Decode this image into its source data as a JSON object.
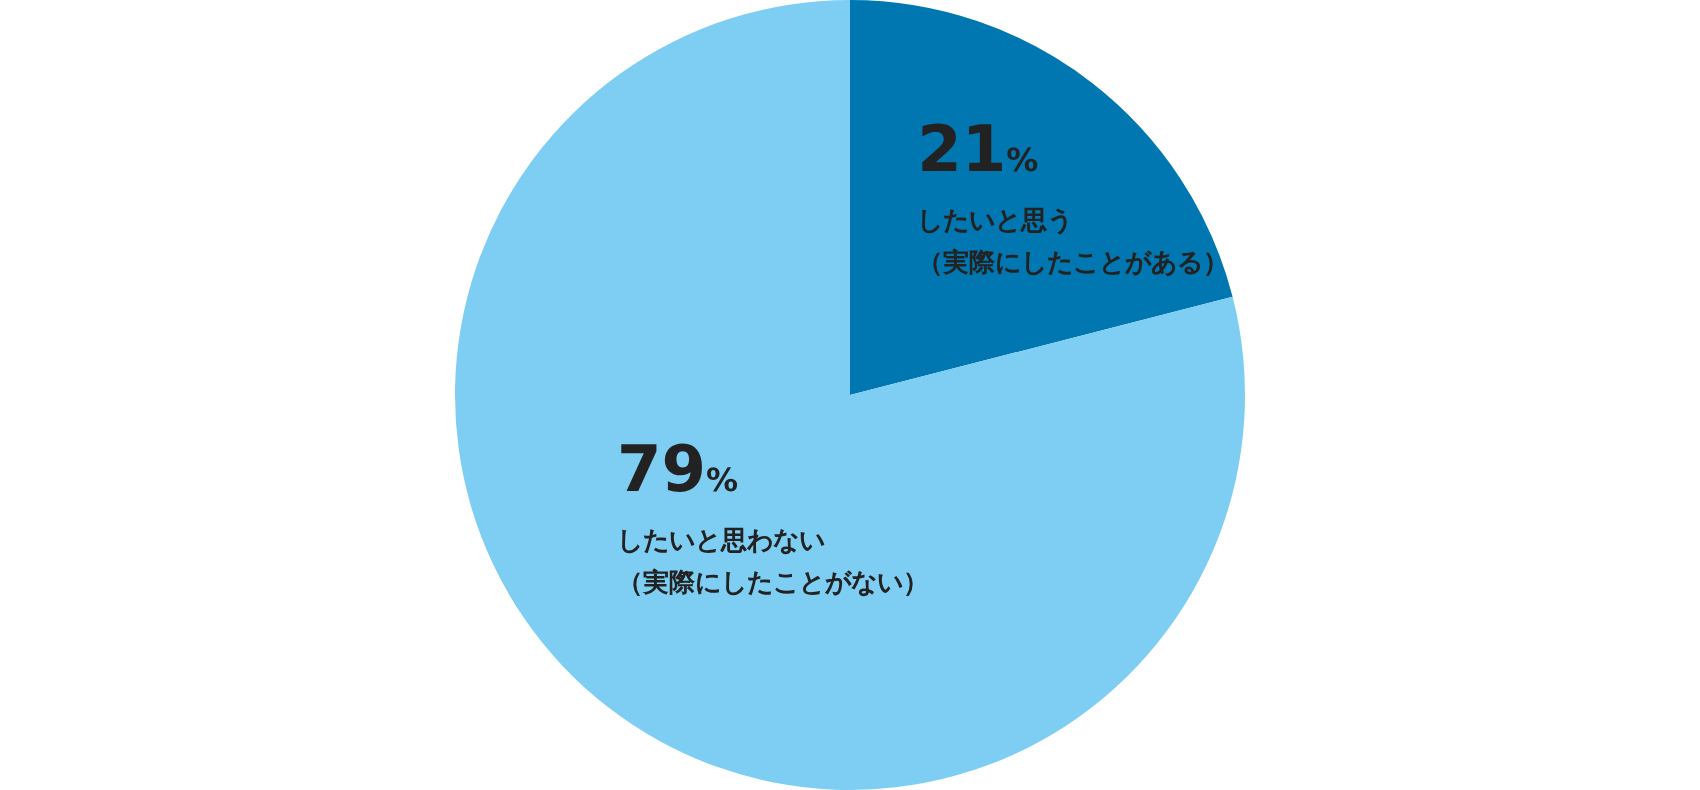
{
  "chart_data": {
    "type": "pie",
    "categories": [
      "したいと思う（実際にしたことがある）",
      "したいと思わない（実際にしたことがない）"
    ],
    "values": [
      21,
      79
    ],
    "colors": [
      "#0077b0",
      "#7ecef4"
    ],
    "value_labels": [
      "21%",
      "79%"
    ],
    "legend": false
  }
}
